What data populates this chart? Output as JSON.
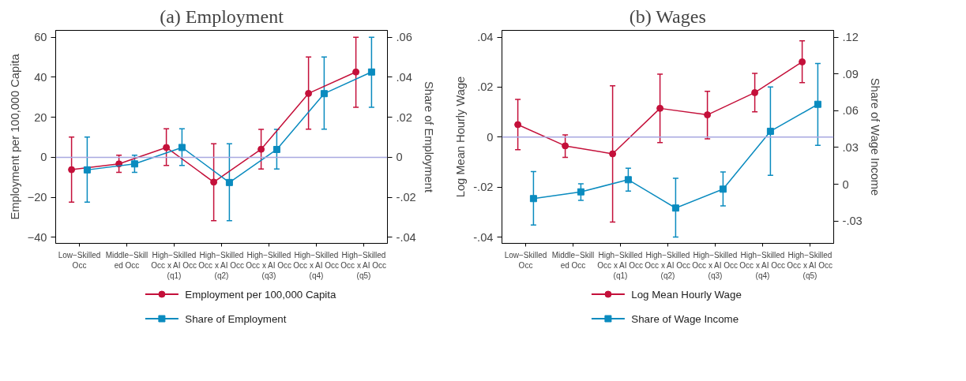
{
  "chart_data": [
    {
      "type": "line",
      "title": "(a) Employment",
      "ylabel": "Employment per 100,000 Capita",
      "y2label": "Share of Employment",
      "categories": [
        "Low−Skilled\nOcc",
        "Middle−Skill\ned Occ",
        "High−Skilled\nOcc x AI Occ\n(q1)",
        "High−Skilled\nOcc x AI Occ\n(q2)",
        "High−Skilled\nOcc x AI Occ\n(q3)",
        "High−Skilled\nOcc x AI Occ\n(q4)",
        "High−Skilled\nOcc x AI Occ\n(q5)"
      ],
      "series": [
        {
          "name": "Employment per 100,000 Capita",
          "color": "#c4103a",
          "marker": "circle",
          "values": [
            -6.2,
            -3.3,
            4.9,
            -12.4,
            4.0,
            31.9,
            42.6
          ],
          "errors": [
            [
              -22.4,
              10.1
            ],
            [
              -7.5,
              1.0
            ],
            [
              -4.1,
              14.2
            ],
            [
              -31.7,
              6.8
            ],
            [
              -5.9,
              13.9
            ],
            [
              14.0,
              50.1
            ],
            [
              25.0,
              60.0
            ]
          ]
        },
        {
          "name": "Share of Employment",
          "color": "#0a8bbf",
          "marker": "square",
          "axis": "y2",
          "values": [
            -0.0063,
            -0.0033,
            0.0049,
            -0.0126,
            0.0039,
            0.0318,
            0.0426
          ],
          "errors": [
            [
              -0.0224,
              0.0101
            ],
            [
              -0.0075,
              0.001
            ],
            [
              -0.0041,
              0.0142
            ],
            [
              -0.0317,
              0.0068
            ],
            [
              -0.0059,
              0.0139
            ],
            [
              0.014,
              0.0501
            ],
            [
              0.025,
              0.06
            ]
          ]
        }
      ],
      "ylim": [
        -43,
        63.4
      ],
      "yticks": [
        -40,
        -20,
        0,
        20,
        40,
        60
      ],
      "y2lim": [
        -0.043,
        0.0634
      ],
      "y2ticks": [
        {
          "value": -0.04,
          "label": "-.04"
        },
        {
          "value": -0.02,
          "label": "-.02"
        },
        0,
        {
          "value": 0.02,
          "label": ".02"
        },
        {
          "value": 0.04,
          "label": ".04"
        },
        {
          "value": 0.06,
          "label": ".06"
        }
      ],
      "ref_lines": [
        {
          "axis": "y",
          "value": 0,
          "color": "#a8a8e0"
        }
      ],
      "grid": false,
      "legend": "bottom",
      "line_style": "solid"
    },
    {
      "type": "line",
      "title": "(b) Wages",
      "ylabel": "Log Mean Hourly Wage",
      "y2label": "Share of Wage Income",
      "categories": [
        "Low−Skilled\nOcc",
        "Middle−Skill\ned Occ",
        "High−Skilled\nOcc x AI Occ\n(q1)",
        "High−Skilled\nOcc x AI Occ\n(q2)",
        "High−Skilled\nOcc x AI Occ\n(q3)",
        "High−Skilled\nOcc x AI Occ\n(q4)",
        "High−Skilled\nOcc x AI Occ\n(q5)"
      ],
      "series": [
        {
          "name": "Log Mean Hourly Wage",
          "color": "#c4103a",
          "marker": "circle",
          "values": [
            0.005,
            -0.0035,
            -0.0067,
            0.0115,
            0.0089,
            0.0178,
            0.0301
          ],
          "errors": [
            [
              -0.005,
              0.0151
            ],
            [
              -0.0081,
              0.0009
            ],
            [
              -0.034,
              0.0205
            ],
            [
              -0.0022,
              0.0252
            ],
            [
              -0.0007,
              0.0183
            ],
            [
              0.0101,
              0.0255
            ],
            [
              0.0218,
              0.0385
            ]
          ]
        },
        {
          "name": "Share of Wage Income",
          "color": "#0a8bbf",
          "marker": "square",
          "axis": "y2",
          "values": [
            -0.0117,
            -0.0062,
            0.0037,
            -0.0194,
            -0.004,
            0.0432,
            0.0652
          ],
          "errors": [
            [
              -0.0333,
              0.0103
            ],
            [
              -0.0132,
              0.0004
            ],
            [
              -0.0055,
              0.013
            ],
            [
              -0.043,
              0.0048
            ],
            [
              -0.0176,
              0.0101
            ],
            [
              0.0073,
              0.0793
            ],
            [
              0.0317,
              0.0985
            ]
          ]
        }
      ],
      "ylim": [
        -0.0425,
        0.0427
      ],
      "yticks": [
        {
          "value": -0.04,
          "label": "-.04"
        },
        {
          "value": -0.02,
          "label": "-.02"
        },
        0,
        {
          "value": 0.02,
          "label": ".02"
        },
        {
          "value": 0.04,
          "label": ".04"
        }
      ],
      "y2lim": [
        -0.0482,
        0.1255
      ],
      "y2ticks": [
        {
          "value": -0.03,
          "label": "-.03"
        },
        0,
        {
          "value": 0.03,
          "label": ".03"
        },
        {
          "value": 0.06,
          "label": ".06"
        },
        {
          "value": 0.09,
          "label": ".09"
        },
        {
          "value": 0.12,
          "label": ".12"
        }
      ],
      "ref_lines": [
        {
          "axis": "y",
          "value": 0,
          "color": "#a8a8e0"
        }
      ],
      "grid": false,
      "legend": "bottom",
      "line_style": "solid"
    }
  ]
}
